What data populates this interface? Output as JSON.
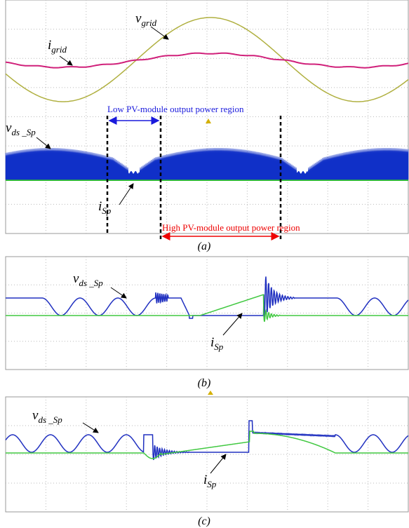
{
  "panel_a": {
    "v_grid": {
      "symbol": "v",
      "subscript": "grid"
    },
    "i_grid": {
      "symbol": "i",
      "subscript": "grid"
    },
    "v_ds": {
      "symbol": "v",
      "subscript": "ds _Sp"
    },
    "i_sp": {
      "symbol": "i",
      "subscript": "Sp"
    },
    "low_region": "Low PV-module output power region",
    "high_region": "High PV-module output power region",
    "caption": "(a)"
  },
  "panel_b": {
    "v_ds": {
      "symbol": "v",
      "subscript": "ds _Sp"
    },
    "i_sp": {
      "symbol": "i",
      "subscript": "Sp"
    },
    "caption": "(b)"
  },
  "panel_c": {
    "v_ds": {
      "symbol": "v",
      "subscript": "ds _Sp"
    },
    "i_sp": {
      "symbol": "i",
      "subscript": "Sp"
    },
    "caption": "(c)"
  }
}
